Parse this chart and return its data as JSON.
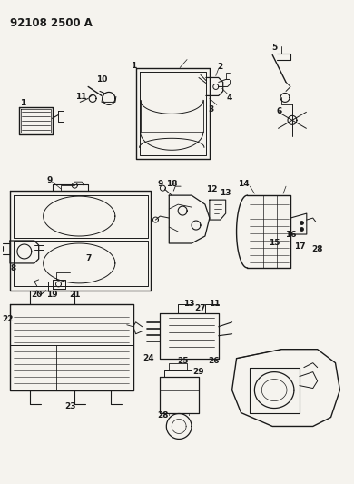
{
  "title": "92108 2500 A",
  "bg_color": "#f5f3ee",
  "line_color": "#1a1a1a",
  "title_fontsize": 8.5,
  "label_fontsize": 6.5,
  "figsize": [
    3.9,
    5.33
  ],
  "dpi": 100
}
